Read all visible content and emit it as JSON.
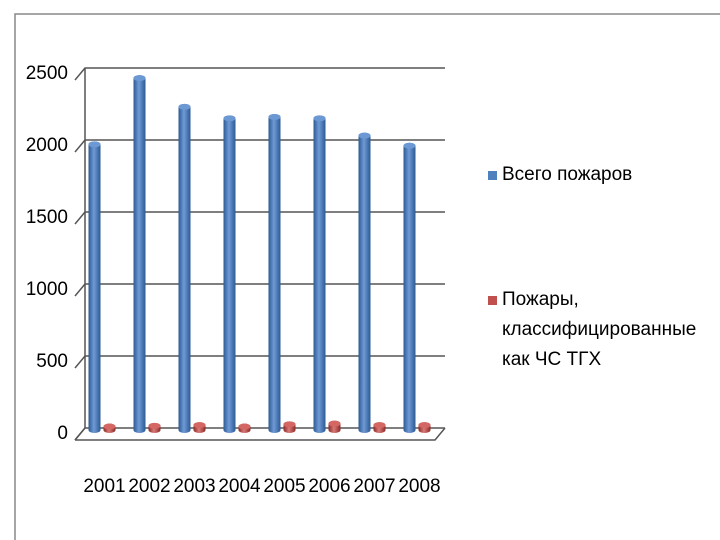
{
  "chart_data": {
    "type": "bar",
    "categories": [
      "2001",
      "2002",
      "2003",
      "2004",
      "2005",
      "2006",
      "2007",
      "2008"
    ],
    "series": [
      {
        "name": "Всего пожаров",
        "color": "#4f81bd",
        "values": [
          1970,
          2430,
          2230,
          2150,
          2160,
          2150,
          2030,
          1960
        ]
      },
      {
        "name": "Пожары, классифицированные как ЧС ТГХ",
        "color": "#c0504d",
        "values": [
          10,
          15,
          20,
          10,
          25,
          30,
          20,
          20
        ]
      }
    ],
    "ylim": [
      0,
      2500
    ],
    "yticks": [
      0,
      500,
      1000,
      1500,
      2000,
      2500
    ],
    "grid": true
  }
}
